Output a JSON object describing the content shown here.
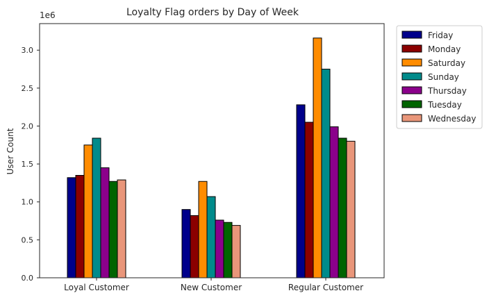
{
  "chart_data": {
    "type": "bar",
    "title": "Loyalty Flag orders by Day of Week",
    "xlabel": "",
    "ylabel": "User Count",
    "y_scale_label": "1e6",
    "ylim": [
      0,
      3.35
    ],
    "yticks": [
      0.0,
      0.5,
      1.0,
      1.5,
      2.0,
      2.5,
      3.0
    ],
    "ytick_labels": [
      "0.0",
      "0.5",
      "1.0",
      "1.5",
      "2.0",
      "2.5",
      "3.0"
    ],
    "grid": false,
    "legend_position": "outside-top-right",
    "categories": [
      "Loyal Customer",
      "New Customer",
      "Regular Customer"
    ],
    "series": [
      {
        "name": "Friday",
        "color": "#00008b",
        "values": [
          1.32,
          0.9,
          2.28
        ]
      },
      {
        "name": "Monday",
        "color": "#8b0000",
        "values": [
          1.35,
          0.82,
          2.05
        ]
      },
      {
        "name": "Saturday",
        "color": "#ff8c00",
        "values": [
          1.75,
          1.27,
          3.16
        ]
      },
      {
        "name": "Sunday",
        "color": "#008b8b",
        "values": [
          1.84,
          1.07,
          2.75
        ]
      },
      {
        "name": "Thursday",
        "color": "#8b008b",
        "values": [
          1.45,
          0.76,
          1.99
        ]
      },
      {
        "name": "Tuesday",
        "color": "#006400",
        "values": [
          1.27,
          0.73,
          1.84
        ]
      },
      {
        "name": "Wednesday",
        "color": "#e9967a",
        "values": [
          1.29,
          0.69,
          1.8
        ]
      }
    ]
  }
}
